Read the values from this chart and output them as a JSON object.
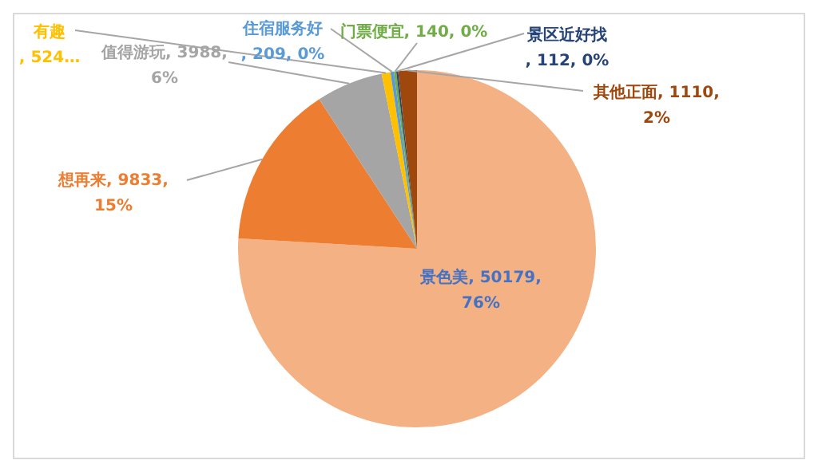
{
  "chart_data": {
    "type": "pie",
    "categories": [
      "景色美",
      "想再来",
      "值得游玩",
      "有趣",
      "住宿服务好",
      "门票便宜",
      "景区近好找",
      "其他正面"
    ],
    "values": [
      50179,
      9833,
      3988,
      524,
      209,
      140,
      112,
      1110
    ],
    "colors": [
      "#f4b183",
      "#ed7d31",
      "#a5a5a5",
      "#ffc000",
      "#5b9bd5",
      "#70ad47",
      "#264478",
      "#9e480e"
    ],
    "value_labels": [
      ", 50179, 76%",
      ", 9833, 15%",
      ", 3988, 6%",
      ", 524…",
      ", 209, 0%",
      ", 140, 0%",
      ", 112, 0%",
      ", 1110, 2%"
    ],
    "legend": false
  }
}
